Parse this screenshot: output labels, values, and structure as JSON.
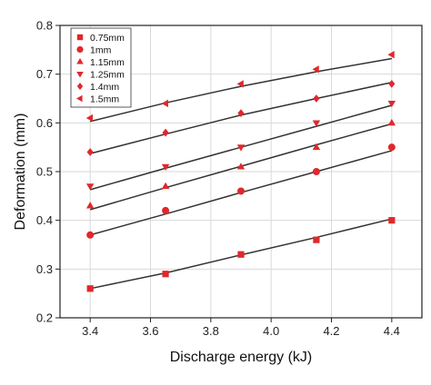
{
  "chart_data": {
    "type": "scatter",
    "xlabel": "Discharge energy (kJ)",
    "ylabel": "Deformation (mm)",
    "xlim": [
      3.3,
      4.5
    ],
    "ylim": [
      0.2,
      0.8
    ],
    "xticks": [
      "3.4",
      "3.6",
      "3.8",
      "4.0",
      "4.2",
      "4.4"
    ],
    "yticks": [
      "0.2",
      "0.3",
      "0.4",
      "0.5",
      "0.6",
      "0.7",
      "0.8"
    ],
    "grid": "on",
    "legend_position": "top-left",
    "marker_color": "#e0282c",
    "fit_line_color": "#333333",
    "x": [
      3.4,
      3.65,
      3.9,
      4.15,
      4.4
    ],
    "series": [
      {
        "name": "0.75mm",
        "marker": "square",
        "values": [
          0.26,
          0.29,
          0.33,
          0.36,
          0.4
        ],
        "fit": [
          0.26,
          0.292,
          0.329,
          0.365,
          0.403
        ]
      },
      {
        "name": "1mm",
        "marker": "circle",
        "values": [
          0.37,
          0.42,
          0.46,
          0.5,
          0.55
        ],
        "fit": [
          0.37,
          0.413,
          0.457,
          0.5,
          0.543
        ]
      },
      {
        "name": "1.15mm",
        "marker": "triangle-up",
        "values": [
          0.43,
          0.47,
          0.51,
          0.55,
          0.6
        ],
        "fit": [
          0.422,
          0.467,
          0.511,
          0.555,
          0.598
        ]
      },
      {
        "name": "1.25mm",
        "marker": "triangle-down",
        "values": [
          0.47,
          0.51,
          0.55,
          0.6,
          0.64
        ],
        "fit": [
          0.463,
          0.507,
          0.55,
          0.593,
          0.636
        ]
      },
      {
        "name": "1.4mm",
        "marker": "diamond",
        "values": [
          0.54,
          0.58,
          0.62,
          0.65,
          0.68
        ],
        "fit": [
          0.537,
          0.577,
          0.616,
          0.65,
          0.683
        ]
      },
      {
        "name": "1.5mm",
        "marker": "triangle-left",
        "values": [
          0.61,
          0.64,
          0.68,
          0.71,
          0.74
        ],
        "fit": [
          0.603,
          0.641,
          0.675,
          0.705,
          0.732
        ]
      }
    ]
  }
}
